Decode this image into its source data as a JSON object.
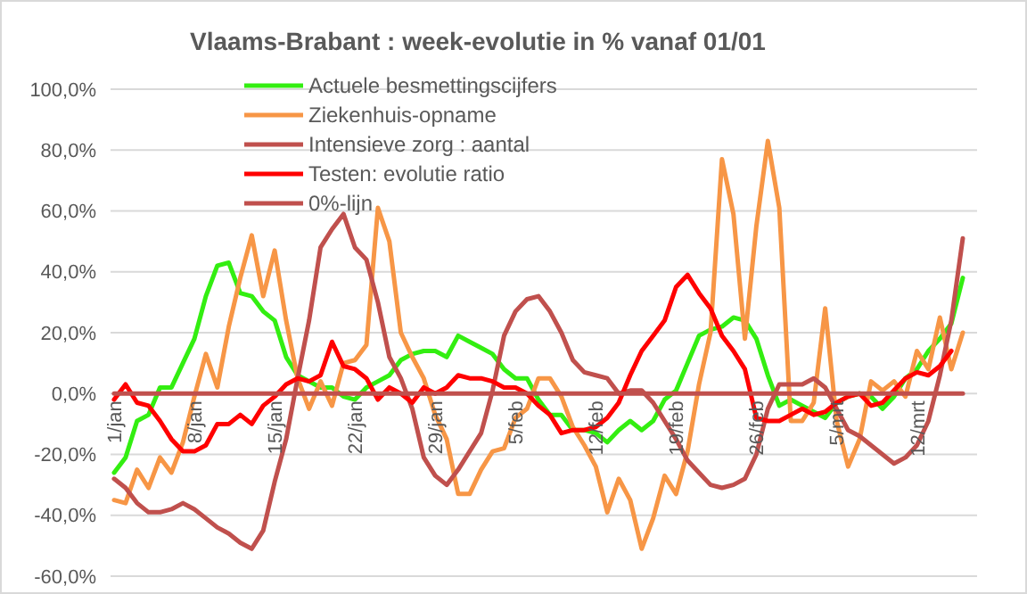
{
  "chart_data": {
    "type": "line",
    "title": "Vlaams-Brabant : week-evolutie in %  vanaf 01/01",
    "categories": [
      "1/jan",
      null,
      null,
      null,
      null,
      null,
      null,
      "8/jan",
      null,
      null,
      null,
      null,
      null,
      null,
      "15/jan",
      null,
      null,
      null,
      null,
      null,
      null,
      "22/jan",
      null,
      null,
      null,
      null,
      null,
      null,
      "29/jan",
      null,
      null,
      null,
      null,
      null,
      null,
      "5/feb",
      null,
      null,
      null,
      null,
      null,
      null,
      "12/feb",
      null,
      null,
      null,
      null,
      null,
      null,
      "19/feb",
      null,
      null,
      null,
      null,
      null,
      null,
      "26/feb",
      null,
      null,
      null,
      null,
      null,
      null,
      "5/mrt",
      null,
      null,
      null,
      null,
      null,
      null,
      "12/mrt",
      null,
      null,
      null,
      null
    ],
    "series": [
      {
        "name": "Actuele besmettingscijfers",
        "color": "#33ee11",
        "values": [
          -26,
          -21,
          -9,
          -7,
          2,
          2,
          10,
          18,
          32,
          42,
          43,
          33,
          32,
          27,
          24,
          12,
          6,
          4,
          2,
          2,
          -1,
          -2,
          2,
          4,
          6,
          11,
          13,
          14,
          14,
          12,
          19,
          17,
          15,
          13,
          8,
          5,
          5,
          -2,
          -7,
          -7,
          -12,
          -12,
          -13,
          -16,
          -12,
          -9,
          -12,
          -9,
          -2,
          1,
          10,
          19,
          21,
          22,
          25,
          24,
          18,
          6,
          -4,
          -2,
          -4,
          -6,
          -8,
          -3,
          -1,
          0,
          -1,
          -5,
          -1,
          5,
          8,
          14,
          18,
          23,
          38
        ]
      },
      {
        "name": "Ziekenhuis-opname",
        "color": "#f79646",
        "values": [
          -35,
          -36,
          -25,
          -31,
          -21,
          -26,
          -16,
          -1,
          13,
          2,
          22,
          38,
          52,
          32,
          47,
          24,
          5,
          -5,
          4,
          -4,
          10,
          11,
          16,
          61,
          50,
          20,
          12,
          5,
          -7,
          -15,
          -33,
          -33,
          -25,
          -19,
          -18,
          -8,
          -5,
          5,
          5,
          -1,
          -11,
          -17,
          -24,
          -39,
          -28,
          -35,
          -51,
          -41,
          -27,
          -33,
          -19,
          3,
          20,
          77,
          59,
          18,
          55,
          83,
          61,
          -9,
          -9,
          -3,
          28,
          -9,
          -24,
          -15,
          4,
          1,
          4,
          -1,
          14,
          8,
          25,
          8,
          20
        ]
      },
      {
        "name": "Intensieve zorg : aantal",
        "color": "#c0504d",
        "values": [
          -28,
          -31,
          -36,
          -39,
          -39,
          -38,
          -36,
          -38,
          -41,
          -44,
          -46,
          -49,
          -51,
          -45,
          -29,
          -15,
          5,
          24,
          48,
          54,
          59,
          48,
          44,
          30,
          12,
          5,
          -5,
          -21,
          -27,
          -30,
          -25,
          -19,
          -13,
          1,
          19,
          27,
          31,
          32,
          27,
          20,
          11,
          7,
          6,
          5,
          0,
          1,
          1,
          -3,
          -9,
          -15,
          -22,
          -26,
          -30,
          -31,
          -30,
          -28,
          -20,
          -5,
          3,
          3,
          3,
          5,
          2,
          -5,
          -12,
          -14,
          -17,
          -20,
          -23,
          -21,
          -17,
          -9,
          6,
          24,
          51
        ]
      },
      {
        "name": "Testen: evolutie ratio",
        "color": "#ff0000",
        "values": [
          -2,
          3,
          -3,
          -4,
          -9,
          -15,
          -19,
          -19,
          -17,
          -10,
          -10,
          -7,
          -10,
          -4,
          -1,
          3,
          5,
          4,
          6,
          17,
          9,
          8,
          5,
          -2,
          2,
          0,
          -3,
          2,
          0,
          2,
          6,
          5,
          5,
          4,
          2,
          2,
          0,
          -4,
          -7,
          -13,
          -12,
          -12,
          -11,
          -8,
          -3,
          6,
          14,
          19,
          24,
          35,
          39,
          33,
          28,
          19,
          14,
          8,
          -8,
          -9,
          -9,
          -7,
          -5,
          -7,
          -6,
          -3,
          -1,
          0,
          -4,
          -3,
          1,
          5,
          7,
          6,
          9,
          14,
          null
        ]
      },
      {
        "name": "0%-lijn",
        "color": "#c0504d",
        "values": [
          0,
          0,
          0,
          0,
          0,
          0,
          0,
          0,
          0,
          0,
          0,
          0,
          0,
          0,
          0,
          0,
          0,
          0,
          0,
          0,
          0,
          0,
          0,
          0,
          0,
          0,
          0,
          0,
          0,
          0,
          0,
          0,
          0,
          0,
          0,
          0,
          0,
          0,
          0,
          0,
          0,
          0,
          0,
          0,
          0,
          0,
          0,
          0,
          0,
          0,
          0,
          0,
          0,
          0,
          0,
          0,
          0,
          0,
          0,
          0,
          0,
          0,
          0,
          0,
          0,
          0,
          0,
          0,
          0,
          0,
          0,
          0,
          0,
          0,
          0
        ]
      }
    ],
    "ylim": [
      -60,
      100
    ],
    "yticks": [
      {
        "value": -60,
        "label": "-60,0%"
      },
      {
        "value": -40,
        "label": "-40,0%"
      },
      {
        "value": -20,
        "label": "-20,0%"
      },
      {
        "value": 0,
        "label": "0,0%"
      },
      {
        "value": 20,
        "label": "20,0%"
      },
      {
        "value": 40,
        "label": "40,0%"
      },
      {
        "value": 60,
        "label": "60,0%"
      },
      {
        "value": 80,
        "label": "80,0%"
      },
      {
        "value": 100,
        "label": "100,0%"
      }
    ],
    "grid": "y",
    "legend": "top left"
  }
}
